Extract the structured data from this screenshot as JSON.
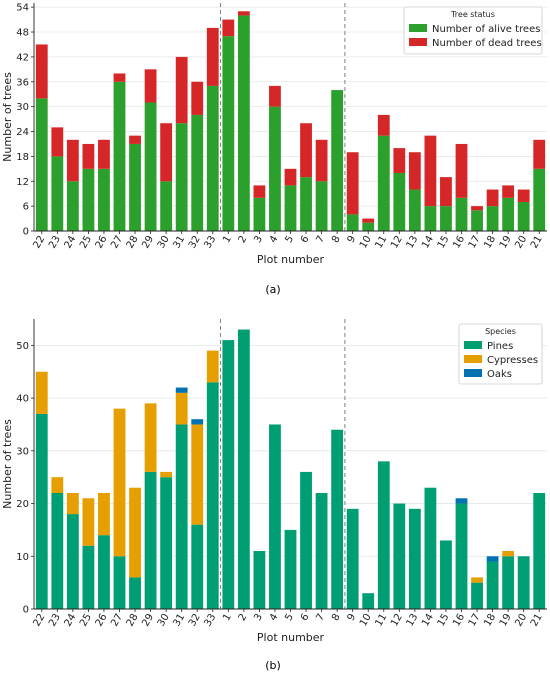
{
  "colors": {
    "alive": "#2ca02c",
    "dead": "#d62728",
    "pines": "#009e73",
    "cypresses": "#e69f00",
    "oaks": "#0072b2",
    "grid": "#e6e6e6",
    "divider": "#808080"
  },
  "chart_data": [
    {
      "type": "bar",
      "stacked": true,
      "panel_label": "(a)",
      "xlabel": "Plot number",
      "ylabel": "Number of trees",
      "ylim": [
        0,
        55
      ],
      "yticks": [
        0,
        6,
        12,
        18,
        24,
        30,
        36,
        42,
        48,
        54
      ],
      "grid": "horizontal",
      "legend_position": "top-right",
      "legend_title": "Tree status",
      "categories": [
        "22",
        "23",
        "24",
        "25",
        "26",
        "27",
        "28",
        "29",
        "30",
        "31",
        "32",
        "33",
        "1",
        "2",
        "3",
        "4",
        "5",
        "6",
        "7",
        "8",
        "9",
        "10",
        "11",
        "12",
        "13",
        "14",
        "15",
        "16",
        "17",
        "18",
        "19",
        "20",
        "21"
      ],
      "dividers_after": [
        "33",
        "8"
      ],
      "series": [
        {
          "name": "Number of alive trees",
          "color_key": "alive",
          "values": [
            32,
            18,
            12,
            15,
            15,
            36,
            21,
            31,
            12,
            26,
            28,
            35,
            47,
            52,
            8,
            30,
            11,
            13,
            12,
            34,
            4,
            2,
            23,
            14,
            10,
            6,
            6,
            8,
            5,
            6,
            8,
            7,
            15
          ]
        },
        {
          "name": "Number of dead trees",
          "color_key": "dead",
          "values": [
            13,
            7,
            10,
            6,
            7,
            2,
            2,
            8,
            14,
            16,
            8,
            14,
            4,
            1,
            3,
            5,
            4,
            13,
            10,
            0,
            15,
            1,
            5,
            6,
            9,
            17,
            7,
            13,
            1,
            4,
            3,
            3,
            7
          ]
        }
      ]
    },
    {
      "type": "bar",
      "stacked": true,
      "panel_label": "(b)",
      "xlabel": "Plot number",
      "ylabel": "Number of trees",
      "ylim": [
        0,
        55
      ],
      "yticks": [
        0,
        10,
        20,
        30,
        40,
        50
      ],
      "grid": "horizontal",
      "legend_position": "top-right",
      "legend_title": "Species",
      "categories": [
        "22",
        "23",
        "24",
        "25",
        "26",
        "27",
        "28",
        "29",
        "30",
        "31",
        "32",
        "33",
        "1",
        "2",
        "3",
        "4",
        "5",
        "6",
        "7",
        "8",
        "9",
        "10",
        "11",
        "12",
        "13",
        "14",
        "15",
        "16",
        "17",
        "18",
        "19",
        "20",
        "21"
      ],
      "dividers_after": [
        "33",
        "8"
      ],
      "series": [
        {
          "name": "Pines",
          "color_key": "pines",
          "values": [
            37,
            22,
            18,
            12,
            14,
            10,
            6,
            26,
            25,
            35,
            16,
            43,
            51,
            53,
            11,
            35,
            15,
            26,
            22,
            34,
            19,
            3,
            28,
            20,
            19,
            23,
            13,
            20,
            5,
            9,
            10,
            10,
            22
          ]
        },
        {
          "name": "Cypresses",
          "color_key": "cypresses",
          "values": [
            8,
            3,
            4,
            9,
            8,
            28,
            17,
            13,
            1,
            6,
            19,
            6,
            0,
            0,
            0,
            0,
            0,
            0,
            0,
            0,
            0,
            0,
            0,
            0,
            0,
            0,
            0,
            0,
            1,
            0,
            1,
            0,
            0
          ]
        },
        {
          "name": "Oaks",
          "color_key": "oaks",
          "values": [
            0,
            0,
            0,
            0,
            0,
            0,
            0,
            0,
            0,
            1,
            1,
            0,
            0,
            0,
            0,
            0,
            0,
            0,
            0,
            0,
            0,
            0,
            0,
            0,
            0,
            0,
            0,
            1,
            0,
            1,
            0,
            0,
            0
          ]
        }
      ]
    }
  ]
}
